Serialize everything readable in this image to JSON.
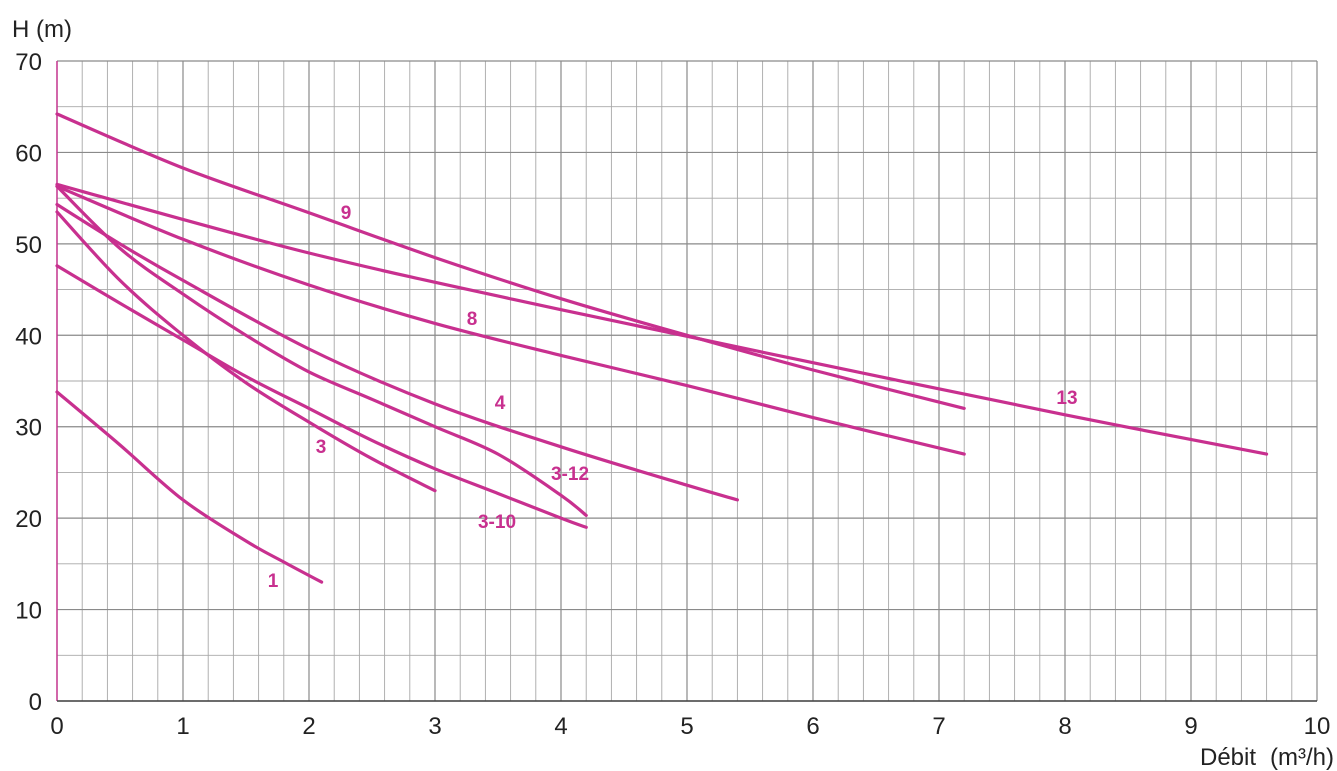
{
  "chart_data": {
    "type": "line",
    "title": "",
    "xlabel": "Débit",
    "xunit": "(m³/h)",
    "ylabel": "H (m)",
    "xlim": [
      0,
      10
    ],
    "ylim": [
      0,
      70
    ],
    "x_ticks": [
      0,
      1,
      2,
      3,
      4,
      5,
      6,
      7,
      8,
      9,
      10
    ],
    "y_ticks": [
      0,
      10,
      20,
      30,
      40,
      50,
      60,
      70
    ],
    "x_minor_step": 0.2,
    "y_minor_step": 5,
    "grid": true,
    "legend": "none",
    "series_color": "#c8308f",
    "series": [
      {
        "name": "1",
        "x": [
          0,
          0.5,
          1.0,
          1.5,
          1.8,
          2.1
        ],
        "y": [
          33.8,
          28.0,
          22.0,
          17.5,
          15.2,
          13.0
        ]
      },
      {
        "name": "3",
        "x": [
          0,
          0.5,
          1.0,
          1.5,
          2.0,
          2.5,
          3.0
        ],
        "y": [
          53.5,
          46.0,
          40.0,
          34.8,
          30.5,
          26.5,
          23.0
        ]
      },
      {
        "name": "3-10",
        "x": [
          0,
          0.5,
          1.0,
          1.5,
          2.0,
          2.5,
          3.0,
          3.5,
          4.0,
          4.2
        ],
        "y": [
          47.6,
          43.5,
          39.5,
          35.5,
          32.0,
          28.5,
          25.4,
          22.7,
          20.0,
          19.0
        ]
      },
      {
        "name": "3-12",
        "x": [
          0,
          0.5,
          1.0,
          1.5,
          2.0,
          2.5,
          3.0,
          3.5,
          4.0,
          4.2
        ],
        "y": [
          56.3,
          49.5,
          44.5,
          40.0,
          36.0,
          33.0,
          30.0,
          27.0,
          22.5,
          20.3
        ]
      },
      {
        "name": "4",
        "x": [
          0,
          0.5,
          1.0,
          2.0,
          3.0,
          4.0,
          5.0,
          5.4
        ],
        "y": [
          54.3,
          50.0,
          46.0,
          38.5,
          32.5,
          27.8,
          23.6,
          22.0
        ]
      },
      {
        "name": "8",
        "x": [
          0,
          1.0,
          2.0,
          3.0,
          4.0,
          5.0,
          6.0,
          7.2
        ],
        "y": [
          56.3,
          50.5,
          45.5,
          41.3,
          37.8,
          34.5,
          31.0,
          27.0
        ]
      },
      {
        "name": "9",
        "x": [
          0,
          1.0,
          2.0,
          3.0,
          4.0,
          5.0,
          6.0,
          7.2
        ],
        "y": [
          64.2,
          58.3,
          53.4,
          48.5,
          44.0,
          40.0,
          36.2,
          32.0
        ]
      },
      {
        "name": "13",
        "x": [
          0,
          2.0,
          4.0,
          6.0,
          8.0,
          9.6
        ],
        "y": [
          56.5,
          49.0,
          42.8,
          37.0,
          31.3,
          27.0
        ]
      }
    ]
  }
}
